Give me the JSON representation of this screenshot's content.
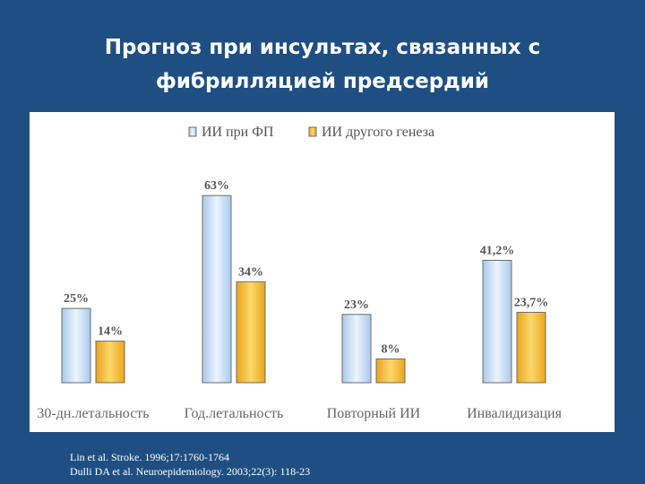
{
  "slide": {
    "title_line1": "Прогноз при инсультах, связанных с",
    "title_line2": "фибрилляцией предсердий"
  },
  "chart_data": {
    "type": "bar",
    "categories": [
      "30-дн.летальность",
      "Год.летальность",
      "Повторный ИИ",
      "Инвалидизация"
    ],
    "series": [
      {
        "name": "ИИ при ФП",
        "values": [
          25,
          63,
          23,
          41.2
        ],
        "labels": [
          "25%",
          "63%",
          "23%",
          "41,2%"
        ],
        "color": "#cfe3f7"
      },
      {
        "name": "ИИ другого генеза",
        "values": [
          14,
          34,
          8,
          23.7
        ],
        "labels": [
          "14%",
          "34%",
          "8%",
          "23,7%"
        ],
        "color": "#f5b731"
      }
    ],
    "ylim": [
      0,
      70
    ],
    "grid": false,
    "legend_position": "top"
  },
  "footnote": {
    "line1": "Lin et al. Stroke. 1996;17:1760-1764",
    "line2": "Dulli DA et al. Neuroepidemiology. 2003;22(3): 118-23"
  },
  "colors": {
    "background": "#1f4f82",
    "series1": "#cfe3f7",
    "series2": "#f5b731",
    "bar_outline": "#6d6d6d"
  }
}
